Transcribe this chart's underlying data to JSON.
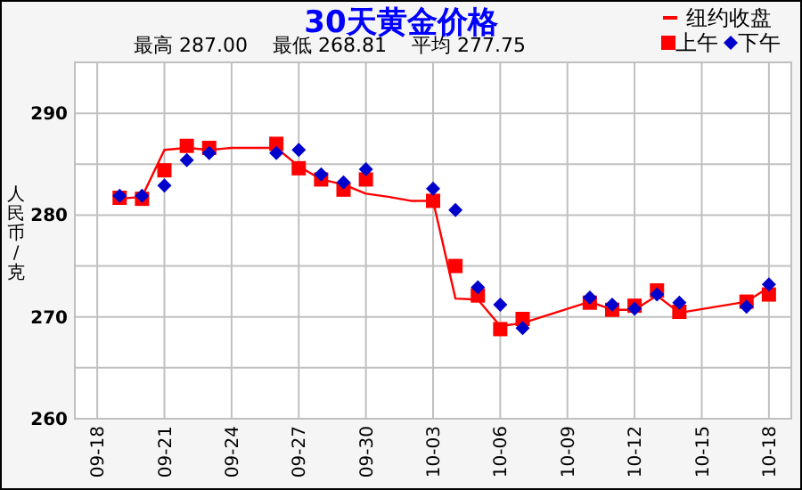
{
  "chart_data": {
    "type": "line",
    "title": "30天黄金价格",
    "subtitle": "最高 287.00    最低 268.81    平均 277.75",
    "ylabel": "人民币/克",
    "xlim": [
      "--09-17",
      "--10-19"
    ],
    "xticks": [
      {
        "value": "--09-18",
        "label": "09-18"
      },
      {
        "value": "--09-21",
        "label": "09-21"
      },
      {
        "value": "--09-24",
        "label": "09-24"
      },
      {
        "value": "--09-27",
        "label": "09-27"
      },
      {
        "value": "--09-30",
        "label": "09-30"
      },
      {
        "value": "--10-03",
        "label": "10-03"
      },
      {
        "value": "--10-06",
        "label": "10-06"
      },
      {
        "value": "--10-09",
        "label": "10-09"
      },
      {
        "value": "--10-12",
        "label": "10-12"
      },
      {
        "value": "--10-15",
        "label": "10-15"
      },
      {
        "value": "--10-18",
        "label": "10-18"
      }
    ],
    "ylim": [
      260,
      295
    ],
    "yticks": [
      260,
      {
        "value": 265,
        "label": null
      },
      270,
      {
        "value": 275,
        "label": null
      },
      280,
      {
        "value": 285,
        "label": null
      },
      290
    ],
    "grid": true,
    "legend": "top right",
    "series": [
      {
        "name": "纽约收盘",
        "marker": "none",
        "color": "#ff0000",
        "x": [
          "--09-19",
          "--09-20",
          "--09-21",
          "--09-22",
          "--09-23",
          "--09-24",
          "--09-26",
          "--09-27",
          "--09-28",
          "--09-29",
          "--09-30",
          "--10-01",
          "--10-02",
          "--10-03",
          "--10-04",
          "--10-05",
          "--10-06",
          "--10-07",
          "--10-10",
          "--10-11",
          "--10-12",
          "--10-13",
          "--10-14",
          "--10-17",
          "--10-18"
        ],
        "values": [
          281.6,
          281.8,
          286.4,
          286.6,
          286.4,
          286.6,
          286.6,
          284.8,
          283.5,
          283.0,
          282.1,
          281.8,
          281.4,
          281.4,
          271.8,
          271.7,
          269.1,
          269.4,
          271.5,
          270.7,
          270.7,
          272.1,
          270.4,
          271.5,
          272.9
        ]
      },
      {
        "name": "上午",
        "type": "scatter",
        "marker": "square",
        "color": "#ff0000",
        "x": [
          "--09-19",
          "--09-20",
          "--09-21",
          "--09-22",
          "--09-23",
          "--09-26",
          "--09-27",
          "--09-28",
          "--09-29",
          "--09-30",
          "--10-03",
          "--10-04",
          "--10-05",
          "--10-06",
          "--10-07",
          "--10-10",
          "--10-11",
          "--10-12",
          "--10-13",
          "--10-14",
          "--10-17",
          "--10-18"
        ],
        "values": [
          281.7,
          281.6,
          284.4,
          286.8,
          286.6,
          287.0,
          284.6,
          283.5,
          282.5,
          283.5,
          281.4,
          275.0,
          272.1,
          268.8,
          269.8,
          271.4,
          270.7,
          271.1,
          272.6,
          270.5,
          271.5,
          272.2
        ]
      },
      {
        "name": "下午",
        "type": "scatter",
        "marker": "diamond",
        "color": "#0000cc",
        "x": [
          "--09-19",
          "--09-20",
          "--09-21",
          "--09-22",
          "--09-23",
          "--09-26",
          "--09-27",
          "--09-28",
          "--09-29",
          "--09-30",
          "--10-03",
          "--10-04",
          "--10-05",
          "--10-06",
          "--10-07",
          "--10-10",
          "--10-11",
          "--10-12",
          "--10-13",
          "--10-14",
          "--10-17",
          "--10-18"
        ],
        "values": [
          281.9,
          281.9,
          282.9,
          285.4,
          286.1,
          286.1,
          286.4,
          284.0,
          283.2,
          284.5,
          282.6,
          280.5,
          272.9,
          271.2,
          268.9,
          271.9,
          271.2,
          270.8,
          272.2,
          271.4,
          271.0,
          273.2
        ]
      }
    ]
  }
}
